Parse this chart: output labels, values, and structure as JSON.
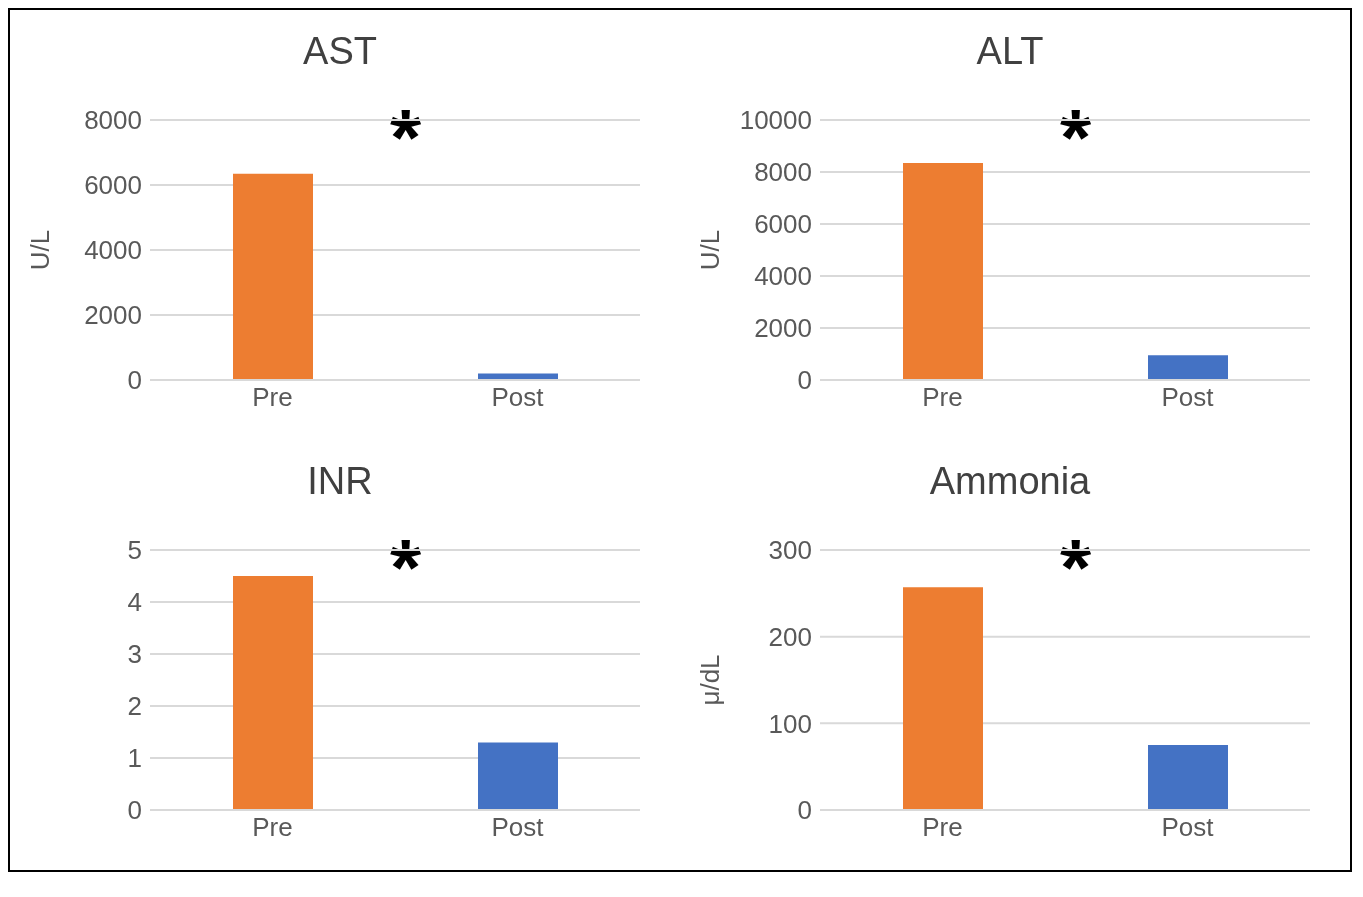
{
  "chart_data": [
    {
      "type": "bar",
      "title": "AST",
      "ylabel": "U/L",
      "categories": [
        "Pre",
        "Post"
      ],
      "values": [
        6350,
        200
      ],
      "colors": [
        "#ed7d31",
        "#4472c4"
      ],
      "ylim": [
        0,
        8000
      ],
      "yticks": [
        0,
        2000,
        4000,
        6000,
        8000
      ],
      "grid": "y",
      "annotations": [
        "*"
      ]
    },
    {
      "type": "bar",
      "title": "ALT",
      "ylabel": "U/L",
      "categories": [
        "Pre",
        "Post"
      ],
      "values": [
        8350,
        950
      ],
      "colors": [
        "#ed7d31",
        "#4472c4"
      ],
      "ylim": [
        0,
        10000
      ],
      "yticks": [
        0,
        2000,
        4000,
        6000,
        8000,
        10000
      ],
      "grid": "y",
      "annotations": [
        "*"
      ]
    },
    {
      "type": "bar",
      "title": "INR",
      "categories": [
        "Pre",
        "Post"
      ],
      "values": [
        4.5,
        1.3
      ],
      "colors": [
        "#ed7d31",
        "#4472c4"
      ],
      "ylim": [
        0,
        5
      ],
      "yticks": [
        0,
        1,
        2,
        3,
        4,
        5
      ],
      "grid": "y",
      "annotations": [
        "*"
      ]
    },
    {
      "type": "bar",
      "title": "Ammonia",
      "ylabel": "μ/dL",
      "categories": [
        "Pre",
        "Post"
      ],
      "values": [
        257,
        75
      ],
      "colors": [
        "#ed7d31",
        "#4472c4"
      ],
      "ylim": [
        0,
        300
      ],
      "yticks": [
        0,
        100,
        200,
        300
      ],
      "grid": "y",
      "annotations": [
        "*"
      ]
    }
  ]
}
